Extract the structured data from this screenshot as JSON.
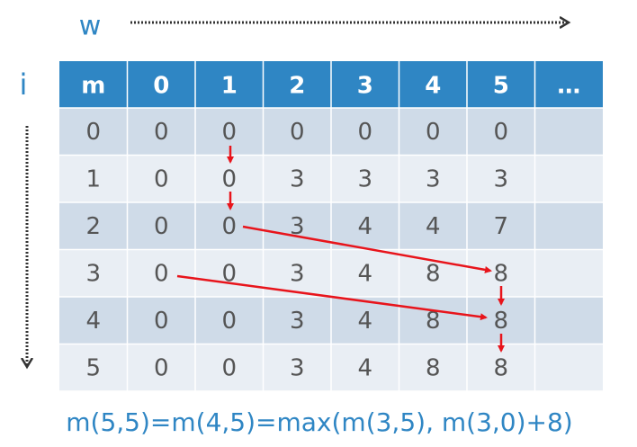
{
  "labels": {
    "w": "w",
    "i": "i"
  },
  "table": {
    "header": [
      "m",
      "0",
      "1",
      "2",
      "3",
      "4",
      "5",
      "…"
    ],
    "rows": [
      [
        0,
        0,
        0,
        0,
        0,
        0,
        0
      ],
      [
        1,
        0,
        0,
        3,
        3,
        3,
        3
      ],
      [
        2,
        0,
        0,
        3,
        4,
        4,
        7
      ],
      [
        3,
        0,
        0,
        3,
        4,
        8,
        8
      ],
      [
        4,
        0,
        0,
        3,
        4,
        8,
        8
      ],
      [
        5,
        0,
        0,
        3,
        4,
        8,
        8
      ]
    ]
  },
  "formula": "m(5,5)=m(4,5)=max(m(3,5), m(3,0)+8)"
}
